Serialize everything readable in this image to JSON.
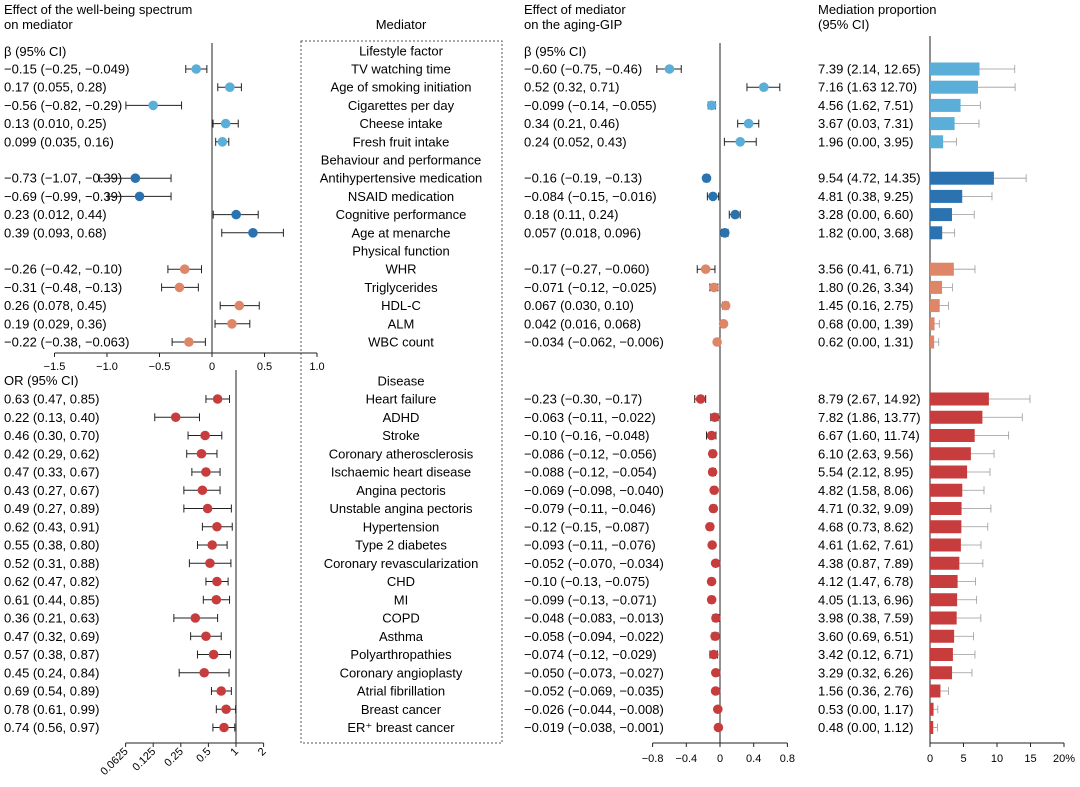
{
  "headers": {
    "wellbeing": [
      "Effect of the well-being spectrum",
      "on mediator"
    ],
    "mediator": "Mediator",
    "aging": [
      "Effect of mediator",
      "on the aging-GIP"
    ],
    "proportion": [
      "Mediation proportion",
      "(95% CI)"
    ]
  },
  "sub_labels": {
    "beta_left": "β (95% CI)",
    "or_left": "OR (95% CI)",
    "beta_right": "β (95% CI)"
  },
  "colors": {
    "lifestyle": "#5aaed8",
    "behaviour": "#2a73b0",
    "physical": "#de8668",
    "disease": "#c73c3c"
  },
  "chart_data": {
    "type": "forest_plot_with_bars",
    "axes": {
      "beta_wellbeing": {
        "ticks": [
          -1.5,
          -1.0,
          -0.5,
          0,
          0.5,
          1.0
        ],
        "tick_labels": [
          "−1.5",
          "−1.0",
          "−0.5",
          "0",
          "0.5",
          "1.0"
        ],
        "range": [
          -1.5,
          1.0
        ]
      },
      "or_wellbeing": {
        "scale": "log2",
        "ticks": [
          0.0625,
          0.125,
          0.25,
          0.5,
          1,
          2
        ],
        "tick_labels": [
          "0.0625",
          "0.125",
          "0.25",
          "0.5",
          "1",
          "2"
        ],
        "range": [
          0.0625,
          2
        ]
      },
      "beta_aging": {
        "ticks": [
          -0.8,
          -0.4,
          0,
          0.4,
          0.8
        ],
        "tick_labels": [
          "−0.8",
          "−0.4",
          "0",
          "0.4",
          "0.8"
        ],
        "range": [
          -0.8,
          0.8
        ]
      },
      "proportion": {
        "ticks": [
          0,
          5,
          10,
          15,
          20
        ],
        "tick_labels": [
          "0",
          "5",
          "10",
          "15",
          "20%"
        ],
        "range": [
          0,
          20
        ]
      }
    },
    "groups": [
      {
        "name": "Lifestyle factor",
        "color_key": "lifestyle",
        "effect_type": "beta",
        "rows": [
          {
            "mediator": "TV watching time",
            "w": [
              -0.15,
              -0.25,
              -0.049
            ],
            "w_text": "−0.15 (−0.25, −0.049)",
            "a": [
              -0.6,
              -0.75,
              -0.46
            ],
            "a_text": "−0.60 (−0.75, −0.46)",
            "p": [
              7.39,
              2.14,
              12.65
            ],
            "p_text": "7.39 (2.14, 12.65)"
          },
          {
            "mediator": "Age of smoking initiation",
            "w": [
              0.17,
              0.055,
              0.28
            ],
            "w_text": "0.17 (0.055, 0.28)",
            "a": [
              0.52,
              0.32,
              0.71
            ],
            "a_text": "0.52 (0.32, 0.71)",
            "p": [
              7.16,
              1.63,
              12.7
            ],
            "p_text": "7.16 (1.63 12.70)"
          },
          {
            "mediator": "Cigarettes per day",
            "w": [
              -0.56,
              -0.82,
              -0.29
            ],
            "w_text": "−0.56 (−0.82, −0.29)",
            "a": [
              -0.099,
              -0.14,
              -0.055
            ],
            "a_text": "−0.099 (−0.14, −0.055)",
            "p": [
              4.56,
              1.62,
              7.51
            ],
            "p_text": "4.56 (1.62, 7.51)"
          },
          {
            "mediator": "Cheese intake",
            "w": [
              0.13,
              0.01,
              0.25
            ],
            "w_text": "0.13 (0.010, 0.25)",
            "a": [
              0.34,
              0.21,
              0.46
            ],
            "a_text": "0.34 (0.21, 0.46)",
            "p": [
              3.67,
              0.03,
              7.31
            ],
            "p_text": "3.67 (0.03, 7.31)"
          },
          {
            "mediator": "Fresh fruit intake",
            "w": [
              0.099,
              0.035,
              0.16
            ],
            "w_text": "0.099 (0.035, 0.16)",
            "a": [
              0.24,
              0.052,
              0.43
            ],
            "a_text": "0.24 (0.052, 0.43)",
            "p": [
              1.96,
              0.0,
              3.95
            ],
            "p_text": "1.96 (0.00, 3.95)"
          }
        ]
      },
      {
        "name": "Behaviour and performance",
        "color_key": "behaviour",
        "effect_type": "beta",
        "rows": [
          {
            "mediator": "Antihypertensive medication",
            "w": [
              -0.73,
              -1.07,
              -0.39
            ],
            "w_text": "−0.73 (−1.07, −0.39)",
            "a": [
              -0.16,
              -0.19,
              -0.13
            ],
            "a_text": "−0.16 (−0.19, −0.13)",
            "p": [
              9.54,
              4.72,
              14.35
            ],
            "p_text": "9.54 (4.72, 14.35)"
          },
          {
            "mediator": "NSAID medication",
            "w": [
              -0.69,
              -0.99,
              -0.39
            ],
            "w_text": "−0.69 (−0.99, −0.39)",
            "a": [
              -0.084,
              -0.15,
              -0.016
            ],
            "a_text": "−0.084 (−0.15, −0.016)",
            "p": [
              4.81,
              0.38,
              9.25
            ],
            "p_text": "4.81 (0.38, 9.25)"
          },
          {
            "mediator": "Cognitive performance",
            "w": [
              0.23,
              0.012,
              0.44
            ],
            "w_text": "0.23 (0.012, 0.44)",
            "a": [
              0.18,
              0.11,
              0.24
            ],
            "a_text": "0.18 (0.11, 0.24)",
            "p": [
              3.28,
              0.0,
              6.6
            ],
            "p_text": "3.28 (0.00, 6.60)"
          },
          {
            "mediator": "Age at menarche",
            "w": [
              0.39,
              0.093,
              0.68
            ],
            "w_text": "0.39 (0.093, 0.68)",
            "a": [
              0.057,
              0.018,
              0.096
            ],
            "a_text": "0.057 (0.018, 0.096)",
            "p": [
              1.82,
              0.0,
              3.68
            ],
            "p_text": "1.82 (0.00, 3.68)"
          }
        ]
      },
      {
        "name": "Physical function",
        "color_key": "physical",
        "effect_type": "beta",
        "rows": [
          {
            "mediator": "WHR",
            "w": [
              -0.26,
              -0.42,
              -0.1
            ],
            "w_text": "−0.26 (−0.42, −0.10)",
            "a": [
              -0.17,
              -0.27,
              -0.06
            ],
            "a_text": "−0.17 (−0.27, −0.060)",
            "p": [
              3.56,
              0.41,
              6.71
            ],
            "p_text": "3.56 (0.41, 6.71)"
          },
          {
            "mediator": "Triglycerides",
            "w": [
              -0.31,
              -0.48,
              -0.13
            ],
            "w_text": "−0.31 (−0.48, −0.13)",
            "a": [
              -0.071,
              -0.12,
              -0.025
            ],
            "a_text": "−0.071 (−0.12, −0.025)",
            "p": [
              1.8,
              0.26,
              3.34
            ],
            "p_text": "1.80 (0.26, 3.34)"
          },
          {
            "mediator": "HDL-C",
            "w": [
              0.26,
              0.078,
              0.45
            ],
            "w_text": "0.26 (0.078, 0.45)",
            "a": [
              0.067,
              0.03,
              0.1
            ],
            "a_text": "0.067 (0.030, 0.10)",
            "p": [
              1.45,
              0.16,
              2.75
            ],
            "p_text": "1.45 (0.16, 2.75)"
          },
          {
            "mediator": "ALM",
            "w": [
              0.19,
              0.029,
              0.36
            ],
            "w_text": "0.19 (0.029, 0.36)",
            "a": [
              0.042,
              0.016,
              0.068
            ],
            "a_text": "0.042 (0.016, 0.068)",
            "p": [
              0.68,
              0.0,
              1.39
            ],
            "p_text": "0.68 (0.00, 1.39)"
          },
          {
            "mediator": "WBC count",
            "w": [
              -0.22,
              -0.38,
              -0.063
            ],
            "w_text": "−0.22 (−0.38, −0.063)",
            "a": [
              -0.034,
              -0.062,
              -0.006
            ],
            "a_text": "−0.034 (−0.062, −0.006)",
            "p": [
              0.62,
              0.0,
              1.31
            ],
            "p_text": "0.62 (0.00, 1.31)"
          }
        ]
      },
      {
        "name": "Disease",
        "color_key": "disease",
        "effect_type": "or",
        "rows": [
          {
            "mediator": "Heart failure",
            "w": [
              0.63,
              0.47,
              0.85
            ],
            "w_text": "0.63 (0.47, 0.85)",
            "a": [
              -0.23,
              -0.3,
              -0.17
            ],
            "a_text": "−0.23 (−0.30, −0.17)",
            "p": [
              8.79,
              2.67,
              14.92
            ],
            "p_text": "8.79 (2.67, 14.92)"
          },
          {
            "mediator": "ADHD",
            "w": [
              0.22,
              0.13,
              0.4
            ],
            "w_text": "0.22 (0.13, 0.40)",
            "a": [
              -0.063,
              -0.11,
              -0.022
            ],
            "a_text": "−0.063 (−0.11, −0.022)",
            "p": [
              7.82,
              1.86,
              13.77
            ],
            "p_text": "7.82 (1.86, 13.77)"
          },
          {
            "mediator": "Stroke",
            "w": [
              0.46,
              0.3,
              0.7
            ],
            "w_text": "0.46 (0.30, 0.70)",
            "a": [
              -0.1,
              -0.16,
              -0.048
            ],
            "a_text": "−0.10 (−0.16, −0.048)",
            "p": [
              6.67,
              1.6,
              11.74
            ],
            "p_text": "6.67 (1.60, 11.74)"
          },
          {
            "mediator": "Coronary atherosclerosis",
            "w": [
              0.42,
              0.29,
              0.62
            ],
            "w_text": "0.42 (0.29, 0.62)",
            "a": [
              -0.086,
              -0.12,
              -0.056
            ],
            "a_text": "−0.086 (−0.12, −0.056)",
            "p": [
              6.1,
              2.63,
              9.56
            ],
            "p_text": "6.10 (2.63, 9.56)"
          },
          {
            "mediator": "Ischaemic heart disease",
            "w": [
              0.47,
              0.33,
              0.67
            ],
            "w_text": "0.47 (0.33, 0.67)",
            "a": [
              -0.088,
              -0.12,
              -0.054
            ],
            "a_text": "−0.088 (−0.12, −0.054)",
            "p": [
              5.54,
              2.12,
              8.95
            ],
            "p_text": "5.54 (2.12, 8.95)"
          },
          {
            "mediator": "Angina pectoris",
            "w": [
              0.43,
              0.27,
              0.67
            ],
            "w_text": "0.43 (0.27, 0.67)",
            "a": [
              -0.069,
              -0.098,
              -0.04
            ],
            "a_text": "−0.069 (−0.098, −0.040)",
            "p": [
              4.82,
              1.58,
              8.06
            ],
            "p_text": "4.82 (1.58, 8.06)"
          },
          {
            "mediator": "Unstable angina pectoris",
            "w": [
              0.49,
              0.27,
              0.89
            ],
            "w_text": "0.49 (0.27, 0.89)",
            "a": [
              -0.079,
              -0.11,
              -0.046
            ],
            "a_text": "−0.079 (−0.11, −0.046)",
            "p": [
              4.71,
              0.32,
              9.09
            ],
            "p_text": "4.71 (0.32, 9.09)"
          },
          {
            "mediator": "Hypertension",
            "w": [
              0.62,
              0.43,
              0.91
            ],
            "w_text": "0.62 (0.43, 0.91)",
            "a": [
              -0.12,
              -0.15,
              -0.087
            ],
            "a_text": "−0.12 (−0.15, −0.087)",
            "p": [
              4.68,
              0.73,
              8.62
            ],
            "p_text": "4.68 (0.73, 8.62)"
          },
          {
            "mediator": "Type 2 diabetes",
            "w": [
              0.55,
              0.38,
              0.8
            ],
            "w_text": "0.55 (0.38, 0.80)",
            "a": [
              -0.093,
              -0.11,
              -0.076
            ],
            "a_text": "−0.093 (−0.11, −0.076)",
            "p": [
              4.61,
              1.62,
              7.61
            ],
            "p_text": "4.61 (1.62, 7.61)"
          },
          {
            "mediator": "Coronary revascularization",
            "w": [
              0.52,
              0.31,
              0.88
            ],
            "w_text": "0.52 (0.31, 0.88)",
            "a": [
              -0.052,
              -0.07,
              -0.034
            ],
            "a_text": "−0.052 (−0.070, −0.034)",
            "p": [
              4.38,
              0.87,
              7.89
            ],
            "p_text": "4.38 (0.87, 7.89)"
          },
          {
            "mediator": "CHD",
            "w": [
              0.62,
              0.47,
              0.82
            ],
            "w_text": "0.62 (0.47, 0.82)",
            "a": [
              -0.1,
              -0.13,
              -0.075
            ],
            "a_text": "−0.10 (−0.13, −0.075)",
            "p": [
              4.12,
              1.47,
              6.78
            ],
            "p_text": "4.12 (1.47, 6.78)"
          },
          {
            "mediator": "MI",
            "w": [
              0.61,
              0.44,
              0.85
            ],
            "w_text": "0.61 (0.44, 0.85)",
            "a": [
              -0.099,
              -0.13,
              -0.071
            ],
            "a_text": "−0.099 (−0.13, −0.071)",
            "p": [
              4.05,
              1.13,
              6.96
            ],
            "p_text": "4.05 (1.13, 6.96)"
          },
          {
            "mediator": "COPD",
            "w": [
              0.36,
              0.21,
              0.63
            ],
            "w_text": "0.36 (0.21, 0.63)",
            "a": [
              -0.048,
              -0.083,
              -0.013
            ],
            "a_text": "−0.048 (−0.083, −0.013)",
            "p": [
              3.98,
              0.38,
              7.59
            ],
            "p_text": "3.98 (0.38, 7.59)"
          },
          {
            "mediator": "Asthma",
            "w": [
              0.47,
              0.32,
              0.69
            ],
            "w_text": "0.47 (0.32, 0.69)",
            "a": [
              -0.058,
              -0.094,
              -0.022
            ],
            "a_text": "−0.058 (−0.094, −0.022)",
            "p": [
              3.6,
              0.69,
              6.51
            ],
            "p_text": "3.60 (0.69, 6.51)"
          },
          {
            "mediator": "Polyarthropathies",
            "w": [
              0.57,
              0.38,
              0.87
            ],
            "w_text": "0.57 (0.38, 0.87)",
            "a": [
              -0.074,
              -0.12,
              -0.029
            ],
            "a_text": "−0.074 (−0.12, −0.029)",
            "p": [
              3.42,
              0.12,
              6.71
            ],
            "p_text": "3.42 (0.12, 6.71)"
          },
          {
            "mediator": "Coronary angioplasty",
            "w": [
              0.45,
              0.24,
              0.84
            ],
            "w_text": "0.45 (0.24, 0.84)",
            "a": [
              -0.05,
              -0.073,
              -0.027
            ],
            "a_text": "−0.050 (−0.073, −0.027)",
            "p": [
              3.29,
              0.32,
              6.26
            ],
            "p_text": "3.29 (0.32, 6.26)"
          },
          {
            "mediator": "Atrial fibrillation",
            "w": [
              0.69,
              0.54,
              0.89
            ],
            "w_text": "0.69 (0.54, 0.89)",
            "a": [
              -0.052,
              -0.069,
              -0.035
            ],
            "a_text": "−0.052 (−0.069, −0.035)",
            "p": [
              1.56,
              0.36,
              2.76
            ],
            "p_text": "1.56 (0.36, 2.76)"
          },
          {
            "mediator": "Breast cancer",
            "w": [
              0.78,
              0.61,
              0.99
            ],
            "w_text": "0.78 (0.61, 0.99)",
            "a": [
              -0.026,
              -0.044,
              -0.008
            ],
            "a_text": "−0.026 (−0.044, −0.008)",
            "p": [
              0.53,
              0.0,
              1.17
            ],
            "p_text": "0.53 (0.00, 1.17)"
          },
          {
            "mediator": "ER⁺ breast cancer",
            "w": [
              0.74,
              0.56,
              0.97
            ],
            "w_text": "0.74 (0.56, 0.97)",
            "a": [
              -0.019,
              -0.038,
              -0.001
            ],
            "a_text": "−0.019 (−0.038, −0.001)",
            "p": [
              0.48,
              0.0,
              1.12
            ],
            "p_text": "0.48 (0.00, 1.12)"
          }
        ]
      }
    ]
  }
}
